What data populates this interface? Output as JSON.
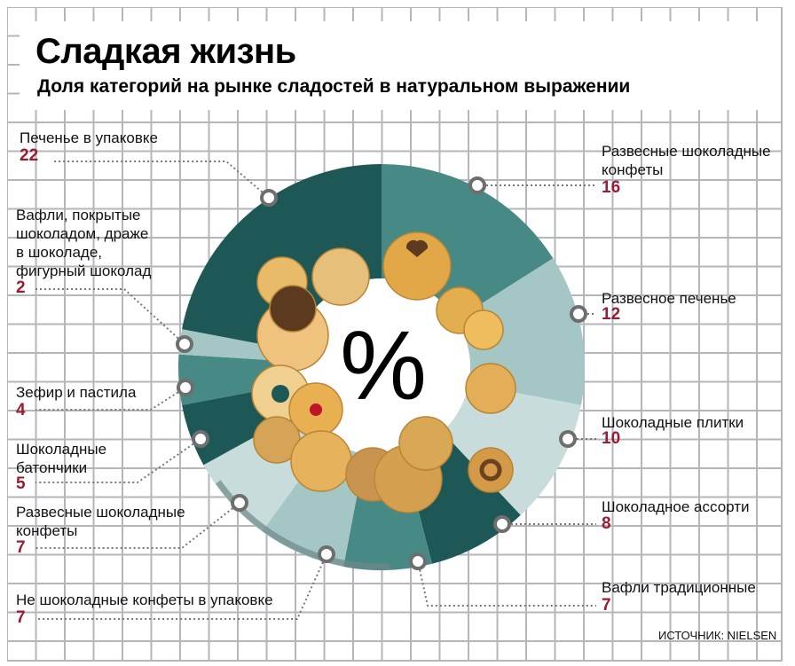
{
  "header": {
    "title": "Сладкая жизнь",
    "subtitle": "Доля категорий на рынке сладостей в натуральном выражении"
  },
  "source": "ИСТОЧНИК: NIELSEN",
  "center_symbol": "%",
  "colors": {
    "dark": "#1d5756",
    "mid": "#468985",
    "light": "#a4c7c6",
    "pale": "#c8dcdc",
    "value": "#9b1b30"
  },
  "chart_data": {
    "type": "pie",
    "variant": "donut",
    "title": "Сладкая жизнь",
    "subtitle": "Доля категорий на рынке сладостей в натуральном выражении",
    "unit": "%",
    "order": "clockwise from top",
    "slices": [
      {
        "label": "Развесные шоколадные конфеты",
        "value": 16,
        "color": "#468985"
      },
      {
        "label": "Развесное печенье",
        "value": 12,
        "color": "#a4c7c6"
      },
      {
        "label": "Шоколадные плитки",
        "value": 10,
        "color": "#c8dcdc"
      },
      {
        "label": "Шоколадное ассорти",
        "value": 8,
        "color": "#1d5756"
      },
      {
        "label": "Вафли традиционные",
        "value": 7,
        "color": "#468985"
      },
      {
        "label": "Не шоколадные конфеты в упаковке",
        "value": 7,
        "color": "#a4c7c6"
      },
      {
        "label": "Развесные шоколадные конфеты",
        "value": 7,
        "color": "#c8dcdc"
      },
      {
        "label": "Шоколадные батончики",
        "value": 5,
        "color": "#1d5756"
      },
      {
        "label": "Зефир и пастила",
        "value": 4,
        "color": "#468985"
      },
      {
        "label": "Вафли, покрытые шоколадом, драже в шоколаде, фигурный шоколад",
        "value": 2,
        "color": "#a4c7c6"
      },
      {
        "label": "Печенье в упаковке",
        "value": 22,
        "color": "#1d5756"
      }
    ]
  },
  "labels": [
    {
      "lines": [
        "Развесные шоколадные",
        "конфеты"
      ],
      "value": "16"
    },
    {
      "lines": [
        "Развесное печенье"
      ],
      "value": "12"
    },
    {
      "lines": [
        "Шоколадные плитки"
      ],
      "value": "10"
    },
    {
      "lines": [
        "Шоколадное ассорти"
      ],
      "value": "8"
    },
    {
      "lines": [
        "Вафли традиционные"
      ],
      "value": "7"
    },
    {
      "lines": [
        "Не шоколадные конфеты в упаковке"
      ],
      "value": "7"
    },
    {
      "lines": [
        "Развесные шоколадные",
        "конфеты"
      ],
      "value": "7"
    },
    {
      "lines": [
        "Шоколадные",
        "батончики"
      ],
      "value": "5"
    },
    {
      "lines": [
        "Зефир и пастила"
      ],
      "value": "4"
    },
    {
      "lines": [
        "Вафли, покрытые",
        "шоколадом, драже",
        "в шоколаде,",
        "фигурный шоколад"
      ],
      "value": "2"
    },
    {
      "lines": [
        "Печенье в упаковке"
      ],
      "value": "22"
    }
  ]
}
